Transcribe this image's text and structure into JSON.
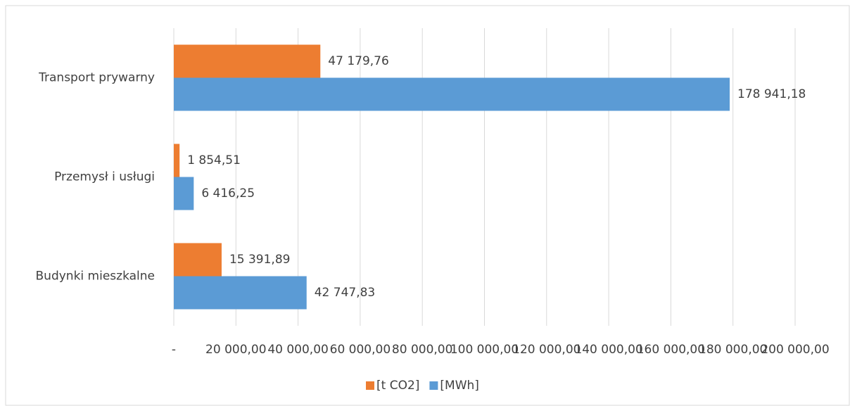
{
  "chart_data": {
    "type": "bar",
    "orientation": "horizontal",
    "categories": [
      "Transport prywarny",
      "Przemysł i usługi",
      "Budynki mieszkalne"
    ],
    "series": [
      {
        "name": "[t CO2]",
        "color": "#ed7d31",
        "values": [
          47179.76,
          1854.51,
          15391.89
        ],
        "value_labels": [
          "47 179,76",
          "1 854,51",
          "15 391,89"
        ]
      },
      {
        "name": "[MWh]",
        "color": "#5b9bd5",
        "values": [
          178941.18,
          6416.25,
          42747.83
        ],
        "value_labels": [
          "178 941,18",
          "6 416,25",
          "42 747,83"
        ]
      }
    ],
    "xlim": [
      0,
      200000
    ],
    "xticks": [
      {
        "value": 0,
        "label": "-"
      },
      {
        "value": 20000,
        "label": "20 000,00"
      },
      {
        "value": 40000,
        "label": "40 000,00"
      },
      {
        "value": 60000,
        "label": "60 000,00"
      },
      {
        "value": 80000,
        "label": "80 000,00"
      },
      {
        "value": 100000,
        "label": "100 000,00"
      },
      {
        "value": 120000,
        "label": "120 000,00"
      },
      {
        "value": 140000,
        "label": "140 000,00"
      },
      {
        "value": 160000,
        "label": "160 000,00"
      },
      {
        "value": 180000,
        "label": "180 000,00"
      },
      {
        "value": 200000,
        "label": "200 000,00"
      }
    ],
    "grid": true,
    "legend": "bottom"
  }
}
